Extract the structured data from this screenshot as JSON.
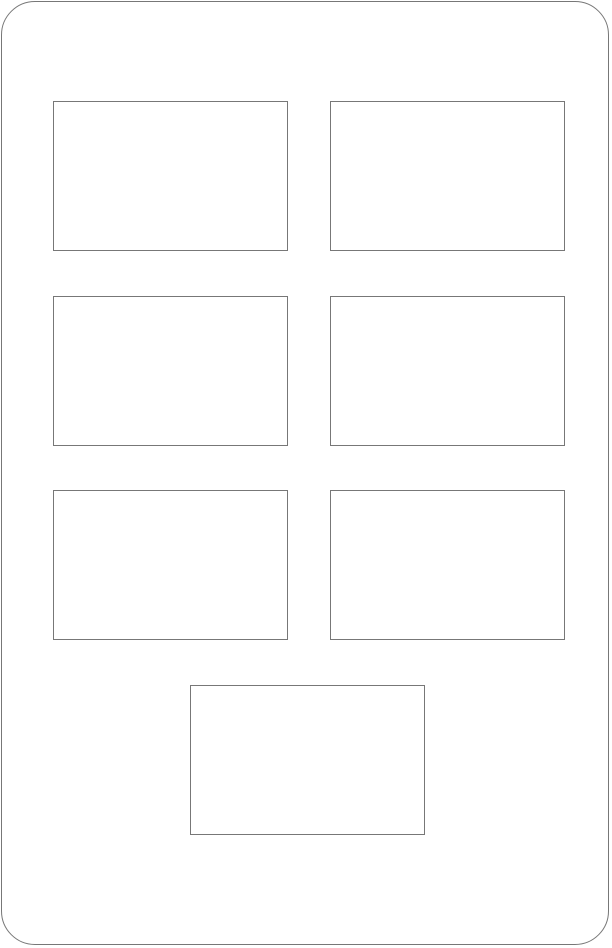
{
  "screen": {
    "border_color": "#777777",
    "background_color": "#ffffff"
  },
  "grid": {
    "tile_count": 7
  }
}
